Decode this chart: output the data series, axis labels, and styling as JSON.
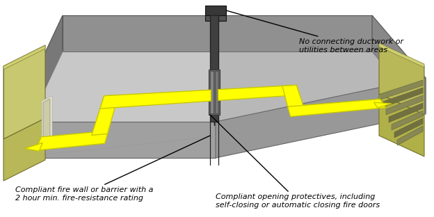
{
  "bg_color": "#ffffff",
  "floor_left_color": "#c8c8c8",
  "floor_right_color": "#b8b8b8",
  "wall_back_color": "#909090",
  "wall_left_color": "#787878",
  "wall_right_color": "#808080",
  "wall_front_left_color": "#a0a0a0",
  "wall_front_right_color": "#989898",
  "firewall_face_color": "#505050",
  "firewall_top_color": "#404040",
  "firewall_edge_color": "#222222",
  "door_color": "#686868",
  "door_edge_color": "#383838",
  "duct_color": "#484848",
  "left_box_top": "#c8c870",
  "left_box_side": "#a8a840",
  "left_box_front": "#b8b858",
  "left_box_inner": "#e0e090",
  "right_box_top": "#b8b858",
  "right_box_side": "#a0a038",
  "right_box_front": "#b0b048",
  "stair_light": "#909090",
  "stair_dark": "#606060",
  "yellow": "#ffff00",
  "yellow_dark": "#c8c800",
  "annotation_fs": 8.0,
  "label1": "Compliant fire wall or barrier with a\n2 hour min. fire-resistance rating",
  "label2": "Compliant opening protectives, including\nself-closing or automatic closing fire doors",
  "label3": "No connecting ductwork or\nutilities between areas"
}
